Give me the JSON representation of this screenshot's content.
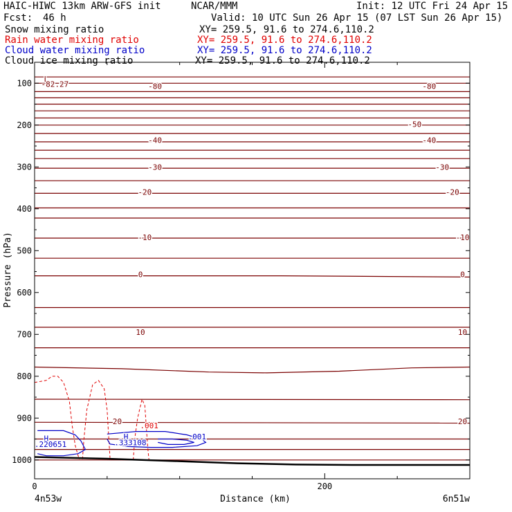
{
  "header": {
    "title": "HAIC-HIWC 13km ARW-GFS init",
    "org": "NCAR/MMM",
    "init": "Init: 12 UTC Fri 24 Apr 15",
    "fcst_label": "Fcst:",
    "fcst_value": "46 h",
    "valid": "Valid: 10 UTC Sun 26 Apr 15 (07 LST Sun 26 Apr 15)"
  },
  "legend": [
    {
      "name": "Snow mixing ratio",
      "xy": "XY= 259.5, 91.6 to 274.6,110.2",
      "color": "#000000"
    },
    {
      "name": "Rain water mixing ratio",
      "xy": "XY= 259.5, 91.6 to 274.6,110.2",
      "color": "#e00000"
    },
    {
      "name": "Cloud water mixing ratio",
      "xy": "XY= 259.5, 91.6 to 274.6,110.2",
      "color": "#0000c8"
    },
    {
      "name": "Cloud ice mixing ratio",
      "xy": "XY= 259.5, 91.6 to 274.6,110.2",
      "color": "#000000"
    }
  ],
  "colors": {
    "temperature": "#7a0000",
    "rain": "#e00000",
    "cloud_water": "#0000c8",
    "terrain": "#000000"
  },
  "chart_data": {
    "type": "line",
    "xlabel": "Distance (km)",
    "ylabel": "Pressure (hPa)",
    "xlim": [
      0,
      300
    ],
    "ylim": [
      1045,
      50
    ],
    "y_ticks": [
      100,
      200,
      300,
      400,
      500,
      600,
      700,
      800,
      900,
      1000
    ],
    "x_ticks": [
      0,
      200
    ],
    "x_minor_ticks": [
      50,
      100,
      150,
      250,
      300
    ],
    "endpoints": {
      "left": "4n53w",
      "right": "6n51w"
    },
    "temperature_contours": {
      "lines": [
        {
          "x": [
            0,
            300
          ],
          "p": [
            1000,
            1000
          ]
        },
        {
          "x": [
            0,
            150,
            300
          ],
          "p": [
            975,
            975,
            975
          ]
        },
        {
          "x": [
            0,
            150,
            300
          ],
          "p": [
            950,
            950,
            950
          ]
        },
        {
          "x": [
            0,
            300
          ],
          "p": [
            910,
            912
          ]
        },
        {
          "x": [
            0,
            300
          ],
          "p": [
            855,
            856
          ]
        },
        {
          "x": [
            0,
            60,
            120,
            160,
            210,
            260,
            300
          ],
          "p": [
            778,
            782,
            790,
            792,
            788,
            780,
            778
          ]
        },
        {
          "x": [
            0,
            300
          ],
          "p": [
            732,
            732
          ]
        },
        {
          "x": [
            0,
            300
          ],
          "p": [
            683,
            683
          ]
        },
        {
          "x": [
            0,
            300
          ],
          "p": [
            636,
            636
          ]
        },
        {
          "x": [
            0,
            170,
            300
          ],
          "p": [
            560,
            560,
            563
          ]
        },
        {
          "x": [
            0,
            300
          ],
          "p": [
            518,
            518
          ]
        },
        {
          "x": [
            0,
            300
          ],
          "p": [
            470,
            470
          ]
        },
        {
          "x": [
            0,
            300
          ],
          "p": [
            422,
            422
          ]
        },
        {
          "x": [
            0,
            300
          ],
          "p": [
            398,
            398
          ]
        },
        {
          "x": [
            0,
            300
          ],
          "p": [
            363,
            363
          ]
        },
        {
          "x": [
            0,
            300
          ],
          "p": [
            333,
            333
          ]
        },
        {
          "x": [
            0,
            300
          ],
          "p": [
            303,
            303
          ]
        },
        {
          "x": [
            0,
            300
          ],
          "p": [
            280,
            280
          ]
        },
        {
          "x": [
            0,
            300
          ],
          "p": [
            260,
            260
          ]
        },
        {
          "x": [
            0,
            300
          ],
          "p": [
            240,
            240
          ]
        },
        {
          "x": [
            0,
            300
          ],
          "p": [
            220,
            220
          ]
        },
        {
          "x": [
            0,
            300
          ],
          "p": [
            200,
            200
          ]
        },
        {
          "x": [
            0,
            300
          ],
          "p": [
            183,
            183
          ]
        },
        {
          "x": [
            0,
            300
          ],
          "p": [
            166,
            166
          ]
        },
        {
          "x": [
            0,
            300
          ],
          "p": [
            150,
            150
          ]
        },
        {
          "x": [
            0,
            300
          ],
          "p": [
            135,
            135
          ]
        },
        {
          "x": [
            0,
            300
          ],
          "p": [
            120,
            120
          ]
        },
        {
          "x": [
            0,
            300
          ],
          "p": [
            100,
            100
          ]
        },
        {
          "x": [
            0,
            300
          ],
          "p": [
            85,
            85
          ]
        }
      ],
      "labels": [
        {
          "text": "20",
          "x": 57,
          "p": 908
        },
        {
          "text": "20",
          "x": 295,
          "p": 908
        },
        {
          "text": "10",
          "x": 73,
          "p": 695
        },
        {
          "text": "10",
          "x": 295,
          "p": 695
        },
        {
          "text": "0",
          "x": 73,
          "p": 557
        },
        {
          "text": "0",
          "x": 295,
          "p": 557
        },
        {
          "text": "-10",
          "x": 76,
          "p": 468
        },
        {
          "text": "-10",
          "x": 295,
          "p": 468
        },
        {
          "text": "-20",
          "x": 76,
          "p": 360
        },
        {
          "text": "-20",
          "x": 288,
          "p": 360
        },
        {
          "text": "-30",
          "x": 83,
          "p": 300
        },
        {
          "text": "-30",
          "x": 281,
          "p": 300
        },
        {
          "text": "-40",
          "x": 83,
          "p": 236
        },
        {
          "text": "-40",
          "x": 272,
          "p": 236
        },
        {
          "text": "-50",
          "x": 262,
          "p": 198
        },
        {
          "text": "-80",
          "x": 83,
          "p": 107
        },
        {
          "text": "-80",
          "x": 272,
          "p": 107
        }
      ],
      "min_label": {
        "mark": "L",
        "value": "-82.27",
        "x": 8,
        "p": 90
      }
    },
    "rain_water_contours": {
      "lines": [
        {
          "x": [
            0,
            8,
            12,
            16,
            20,
            24,
            26,
            28,
            30,
            31
          ],
          "p": [
            815,
            810,
            800,
            800,
            815,
            860,
            920,
            965,
            990,
            998
          ]
        },
        {
          "x": [
            33,
            34,
            36,
            40,
            44,
            48,
            50,
            51,
            52
          ],
          "p": [
            998,
            950,
            880,
            820,
            810,
            830,
            880,
            940,
            995
          ]
        },
        {
          "x": [
            68,
            69,
            71,
            74,
            76,
            77,
            78,
            79
          ],
          "p": [
            1000,
            950,
            900,
            855,
            870,
            920,
            970,
            1005
          ]
        }
      ],
      "labels": [
        {
          "text": ".001",
          "x": 79,
          "p": 918
        }
      ]
    },
    "cloud_water_contours": {
      "lines": [
        {
          "x": [
            2,
            20,
            28,
            32,
            35,
            30,
            20,
            8,
            2
          ],
          "p": [
            930,
            930,
            940,
            955,
            975,
            985,
            990,
            990,
            985
          ]
        },
        {
          "x": [
            50,
            70,
            90,
            105,
            115,
            118,
            112,
            95,
            80,
            65,
            52,
            50
          ],
          "p": [
            938,
            932,
            932,
            940,
            950,
            958,
            966,
            970,
            970,
            968,
            962,
            950
          ]
        },
        {
          "x": [
            85,
            95,
            105,
            110,
            103,
            92,
            85
          ],
          "p": [
            950,
            950,
            953,
            958,
            963,
            963,
            958
          ]
        }
      ],
      "max_labels": [
        {
          "mark": "H",
          "value": ".220651",
          "x": 11,
          "p": 956
        },
        {
          "mark": "H",
          "value": ".333108",
          "x": 66,
          "p": 952
        }
      ],
      "labels": [
        {
          "text": ".001",
          "x": 112,
          "p": 944
        }
      ]
    },
    "terrain": {
      "x": [
        0,
        50,
        100,
        140,
        180,
        220,
        260,
        300
      ],
      "p": [
        993,
        997,
        1003,
        1008,
        1011,
        1012,
        1012,
        1012
      ]
    }
  }
}
